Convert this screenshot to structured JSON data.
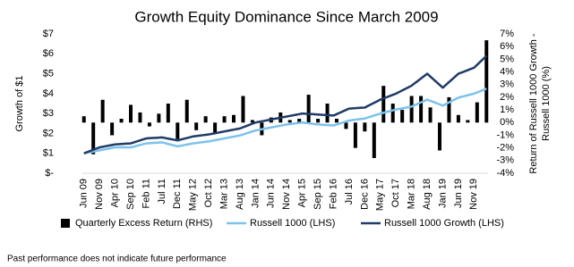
{
  "chart_data": {
    "type": "combo",
    "title": "Growth Equity Dominance Since March 2009",
    "ylabel": "Growth of $1",
    "y2label": [
      "Return of Russell 1000 Growth -",
      "Russell 1000 (%)"
    ],
    "footnote": "Past performance does not indicate future performance",
    "categories": [
      "Jun 09",
      null,
      null,
      null,
      null,
      "Nov 09",
      null,
      null,
      null,
      null,
      "Apr 10",
      null,
      null,
      null,
      null,
      "Sep 10",
      null,
      null,
      null,
      null,
      "Feb 11",
      null,
      null,
      null,
      null,
      "Jul 11",
      null,
      null,
      null,
      null,
      "Dec 11",
      null,
      null,
      null,
      null,
      "May 12",
      null,
      null,
      null,
      null,
      "Oct 12",
      null,
      null,
      null,
      null,
      "Mar 13",
      null,
      null,
      null,
      null,
      "Aug 13",
      null,
      null,
      null,
      null,
      "Jan 14",
      null,
      null,
      null,
      null,
      "Jun 14",
      null,
      null,
      null,
      null,
      "Nov 14",
      null,
      null,
      null,
      null,
      "Apr 15",
      null,
      null,
      null,
      null,
      "Sep 15",
      null,
      null,
      null,
      null,
      "Feb 16",
      null,
      null,
      null,
      null,
      "Jul 16",
      null,
      null,
      null,
      null,
      "Dec 16",
      null,
      null,
      null,
      null,
      "May 17",
      null,
      null,
      null,
      null,
      "Oct 17",
      null,
      null,
      null,
      null,
      "Mar 18",
      null,
      null,
      null,
      null,
      "Aug 18",
      null,
      null,
      null,
      null,
      "Jan 19",
      null,
      null,
      null,
      null,
      "Jun 19",
      null,
      null,
      null,
      null,
      "Nov 19",
      null,
      null,
      null,
      null
    ],
    "ylim": [
      0,
      7
    ],
    "yticks": [
      {
        "value": 0,
        "label": "$-"
      },
      {
        "value": 1,
        "label": "$1"
      },
      {
        "value": 2,
        "label": "$2"
      },
      {
        "value": 3,
        "label": "$3"
      },
      {
        "value": 4,
        "label": "$4"
      },
      {
        "value": 5,
        "label": "$5"
      },
      {
        "value": 6,
        "label": "$6"
      },
      {
        "value": 7,
        "label": "$7"
      }
    ],
    "y2lim": [
      -4,
      7
    ],
    "y2ticks": [
      {
        "value": -4,
        "label": "-4%"
      },
      {
        "value": -3,
        "label": "-3%"
      },
      {
        "value": -2,
        "label": "-2%"
      },
      {
        "value": -1,
        "label": "-1%"
      },
      {
        "value": 0,
        "label": "0%"
      },
      {
        "value": 1,
        "label": "1%"
      },
      {
        "value": 2,
        "label": "2%"
      },
      {
        "value": 3,
        "label": "3%"
      },
      {
        "value": 4,
        "label": "4%"
      },
      {
        "value": 5,
        "label": "5%"
      },
      {
        "value": 6,
        "label": "6%"
      },
      {
        "value": 7,
        "label": "7%"
      }
    ],
    "grid": false,
    "legend": "bottom",
    "series": [
      {
        "name": "Quarterly Excess Return (RHS)",
        "type": "bar",
        "axis": "y2",
        "color": "#000000",
        "values": [
          0.5,
          null,
          null,
          -2.5,
          null,
          null,
          1.8,
          null,
          null,
          -1.0,
          null,
          null,
          0.3,
          null,
          null,
          1.4,
          null,
          null,
          0.8,
          null,
          null,
          -0.3,
          null,
          null,
          0.7,
          null,
          null,
          1.5,
          null,
          null,
          -1.3,
          null,
          null,
          1.8,
          null,
          null,
          -0.6,
          null,
          null,
          0.5,
          null,
          null,
          -0.9,
          null,
          null,
          0.5,
          null,
          null,
          0.6,
          null,
          null,
          2.1,
          null,
          null,
          0.2,
          null,
          null,
          -1.0,
          null,
          null,
          0.4,
          null,
          null,
          0.8,
          null,
          null,
          0.2,
          null,
          null,
          0.3,
          null,
          null,
          2.2,
          null,
          null,
          0.3,
          null,
          null,
          1.5,
          null,
          null,
          0.3,
          null,
          null,
          -0.5,
          null,
          null,
          -2.0,
          null,
          null,
          -0.7,
          null,
          null,
          -2.8,
          null,
          null,
          2.9,
          null,
          null,
          1.5,
          null,
          null,
          1.0,
          null,
          null,
          2.1,
          null,
          null,
          2.1,
          null,
          null,
          1.2,
          null,
          null,
          -2.2,
          null,
          null,
          2.0,
          null,
          null,
          0.6,
          null,
          null,
          0.2,
          null,
          null,
          1.6,
          null,
          null,
          6.5
        ]
      },
      {
        "name": "Russell 1000 (LHS)",
        "type": "line",
        "color": "#7cc2ea",
        "values": [
          1.0,
          1.03,
          1.06,
          1.09,
          1.12,
          1.15,
          1.18,
          1.21,
          1.24,
          1.27,
          1.3,
          1.3,
          1.3,
          1.3,
          1.3,
          1.3,
          1.34,
          1.38,
          1.42,
          1.46,
          1.5,
          1.51,
          1.52,
          1.53,
          1.54,
          1.55,
          1.51,
          1.47,
          1.43,
          1.39,
          1.35,
          1.38,
          1.41,
          1.44,
          1.47,
          1.5,
          1.52,
          1.54,
          1.56,
          1.58,
          1.6,
          1.63,
          1.66,
          1.69,
          1.72,
          1.75,
          1.78,
          1.81,
          1.84,
          1.87,
          1.9,
          1.95,
          2.0,
          2.05,
          2.1,
          2.15,
          2.18,
          2.21,
          2.24,
          2.27,
          2.3,
          2.33,
          2.36,
          2.39,
          2.42,
          2.45,
          2.47,
          2.49,
          2.51,
          2.53,
          2.55,
          2.53,
          2.51,
          2.49,
          2.47,
          2.45,
          2.44,
          2.43,
          2.42,
          2.41,
          2.4,
          2.45,
          2.5,
          2.55,
          2.6,
          2.65,
          2.67,
          2.69,
          2.71,
          2.73,
          2.75,
          2.8,
          2.85,
          2.9,
          2.95,
          3.0,
          3.04,
          3.08,
          3.12,
          3.16,
          3.2,
          3.23,
          3.26,
          3.29,
          3.32,
          3.35,
          3.42,
          3.49,
          3.56,
          3.63,
          3.7,
          3.64,
          3.58,
          3.52,
          3.46,
          3.4,
          3.48,
          3.56,
          3.64,
          3.72,
          3.8,
          3.84,
          3.88,
          3.92,
          3.96,
          4.0,
          4.06,
          4.12,
          4.19,
          4.25
        ]
      },
      {
        "name": "Russell 1000 Growth (LHS)",
        "type": "line",
        "color": "#1f3b66",
        "values": [
          1.0,
          1.06,
          1.12,
          1.18,
          1.24,
          1.3,
          1.33,
          1.36,
          1.39,
          1.42,
          1.45,
          1.46,
          1.47,
          1.48,
          1.49,
          1.5,
          1.55,
          1.6,
          1.65,
          1.7,
          1.75,
          1.76,
          1.77,
          1.78,
          1.79,
          1.8,
          1.77,
          1.74,
          1.71,
          1.68,
          1.65,
          1.69,
          1.73,
          1.77,
          1.81,
          1.85,
          1.87,
          1.89,
          1.91,
          1.93,
          1.95,
          1.98,
          2.01,
          2.04,
          2.07,
          2.1,
          2.13,
          2.16,
          2.19,
          2.22,
          2.25,
          2.31,
          2.37,
          2.43,
          2.49,
          2.55,
          2.58,
          2.61,
          2.64,
          2.67,
          2.7,
          2.73,
          2.76,
          2.79,
          2.82,
          2.85,
          2.88,
          2.91,
          2.94,
          2.97,
          3.0,
          2.99,
          2.98,
          2.97,
          2.96,
          2.95,
          2.94,
          2.93,
          2.92,
          2.91,
          2.9,
          2.97,
          3.04,
          3.11,
          3.18,
          3.25,
          3.26,
          3.27,
          3.28,
          3.29,
          3.3,
          3.38,
          3.46,
          3.54,
          3.62,
          3.7,
          3.76,
          3.82,
          3.88,
          3.94,
          4.0,
          4.08,
          4.16,
          4.24,
          4.32,
          4.4,
          4.52,
          4.64,
          4.76,
          4.88,
          5.0,
          4.86,
          4.72,
          4.58,
          4.44,
          4.3,
          4.44,
          4.58,
          4.72,
          4.86,
          5.0,
          5.06,
          5.12,
          5.18,
          5.24,
          5.3,
          5.45,
          5.6,
          5.75,
          5.9
        ]
      }
    ]
  }
}
